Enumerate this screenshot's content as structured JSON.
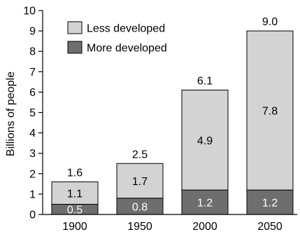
{
  "chart_data": {
    "type": "bar",
    "stacked": true,
    "categories": [
      "1900",
      "1950",
      "2000",
      "2050"
    ],
    "series": [
      {
        "name": "More developed",
        "values": [
          0.5,
          0.8,
          1.2,
          1.2
        ],
        "color": "#6e6e6e",
        "label_color": "#ffffff"
      },
      {
        "name": "Less developed",
        "values": [
          1.1,
          1.7,
          4.9,
          7.8
        ],
        "color": "#d3d3d3",
        "label_color": "#000000"
      }
    ],
    "totals": [
      "1.6",
      "2.5",
      "6.1",
      "9.0"
    ],
    "segment_labels": {
      "More developed": [
        "0.5",
        "0.8",
        "1.2",
        "1.2"
      ],
      "Less developed": [
        "1.1",
        "1.7",
        "4.9",
        "7.8"
      ]
    },
    "title": "",
    "xlabel": "",
    "ylabel": "Billions of people",
    "ylim": [
      0,
      10
    ],
    "yticks": [
      0,
      1,
      2,
      3,
      4,
      5,
      6,
      7,
      8,
      9,
      10
    ],
    "legend_placement": "top-left",
    "legend_order": [
      "Less developed",
      "More developed"
    ],
    "grid": false
  }
}
